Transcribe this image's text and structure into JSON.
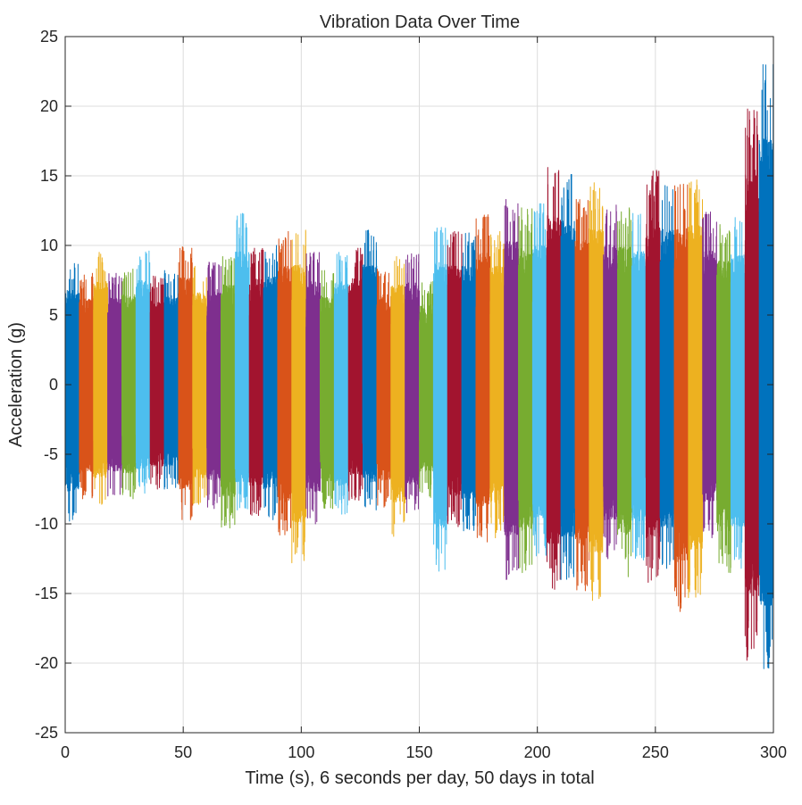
{
  "chart_data": {
    "type": "line",
    "title": "Vibration Data Over Time",
    "xlabel": "Time (s), 6 seconds per day, 50 days in total",
    "ylabel": "Acceleration (g)",
    "xlim": [
      0,
      300
    ],
    "ylim": [
      -25,
      25
    ],
    "xticks": [
      "0",
      "50",
      "100",
      "150",
      "200",
      "250",
      "300"
    ],
    "yticks": [
      "25",
      "20",
      "15",
      "10",
      "5",
      "0",
      "-5",
      "-10",
      "-15",
      "-20",
      "-25"
    ],
    "grid": true,
    "legend": "none",
    "segment_seconds": 6,
    "segment_count": 50,
    "colors": [
      "#0072BD",
      "#D95319",
      "#EDB120",
      "#7E2F8E",
      "#77AC30",
      "#4DBEEE",
      "#A2142F"
    ],
    "series": [
      {
        "start": 0,
        "end": 6,
        "ymax": 8.7,
        "ymin": -9.8
      },
      {
        "start": 6,
        "end": 12,
        "ymax": 8.0,
        "ymin": -8.2
      },
      {
        "start": 12,
        "end": 18,
        "ymax": 9.5,
        "ymin": -8.6
      },
      {
        "start": 18,
        "end": 24,
        "ymax": 8.0,
        "ymin": -8.0
      },
      {
        "start": 24,
        "end": 30,
        "ymax": 8.3,
        "ymin": -8.2
      },
      {
        "start": 30,
        "end": 36,
        "ymax": 9.6,
        "ymin": -7.8
      },
      {
        "start": 36,
        "end": 42,
        "ymax": 7.8,
        "ymin": -7.5
      },
      {
        "start": 42,
        "end": 48,
        "ymax": 8.2,
        "ymin": -7.5
      },
      {
        "start": 48,
        "end": 54,
        "ymax": 9.9,
        "ymin": -9.7
      },
      {
        "start": 54,
        "end": 60,
        "ymax": 8.5,
        "ymin": -8.6
      },
      {
        "start": 60,
        "end": 66,
        "ymax": 8.8,
        "ymin": -8.9
      },
      {
        "start": 66,
        "end": 72,
        "ymax": 9.2,
        "ymin": -10.3
      },
      {
        "start": 72,
        "end": 78,
        "ymax": 12.3,
        "ymin": -9.0
      },
      {
        "start": 78,
        "end": 84,
        "ymax": 9.8,
        "ymin": -9.4
      },
      {
        "start": 84,
        "end": 90,
        "ymax": 10.0,
        "ymin": -9.7
      },
      {
        "start": 90,
        "end": 96,
        "ymax": 11.0,
        "ymin": -10.8
      },
      {
        "start": 96,
        "end": 102,
        "ymax": 11.1,
        "ymin": -12.8
      },
      {
        "start": 102,
        "end": 108,
        "ymax": 9.5,
        "ymin": -10.0
      },
      {
        "start": 108,
        "end": 114,
        "ymax": 8.2,
        "ymin": -8.9
      },
      {
        "start": 114,
        "end": 120,
        "ymax": 9.5,
        "ymin": -9.3
      },
      {
        "start": 120,
        "end": 126,
        "ymax": 9.8,
        "ymin": -8.3
      },
      {
        "start": 126,
        "end": 132,
        "ymax": 11.1,
        "ymin": -9.0
      },
      {
        "start": 132,
        "end": 138,
        "ymax": 8.3,
        "ymin": -8.8
      },
      {
        "start": 138,
        "end": 144,
        "ymax": 9.2,
        "ymin": -10.9
      },
      {
        "start": 144,
        "end": 150,
        "ymax": 9.4,
        "ymin": -9.2
      },
      {
        "start": 150,
        "end": 156,
        "ymax": 7.4,
        "ymin": -8.1
      },
      {
        "start": 156,
        "end": 162,
        "ymax": 11.3,
        "ymin": -13.4
      },
      {
        "start": 162,
        "end": 168,
        "ymax": 11.0,
        "ymin": -10.2
      },
      {
        "start": 168,
        "end": 174,
        "ymax": 10.9,
        "ymin": -10.5
      },
      {
        "start": 174,
        "end": 180,
        "ymax": 12.2,
        "ymin": -11.3
      },
      {
        "start": 180,
        "end": 186,
        "ymax": 11.0,
        "ymin": -11.0
      },
      {
        "start": 186,
        "end": 192,
        "ymax": 13.3,
        "ymin": -14.0
      },
      {
        "start": 192,
        "end": 198,
        "ymax": 12.7,
        "ymin": -13.5
      },
      {
        "start": 198,
        "end": 204,
        "ymax": 13.0,
        "ymin": -12.3
      },
      {
        "start": 204,
        "end": 210,
        "ymax": 15.6,
        "ymin": -14.7
      },
      {
        "start": 210,
        "end": 216,
        "ymax": 15.1,
        "ymin": -14.0
      },
      {
        "start": 216,
        "end": 222,
        "ymax": 13.3,
        "ymin": -14.8
      },
      {
        "start": 222,
        "end": 228,
        "ymax": 14.5,
        "ymin": -15.5
      },
      {
        "start": 228,
        "end": 234,
        "ymax": 12.9,
        "ymin": -12.5
      },
      {
        "start": 234,
        "end": 240,
        "ymax": 12.7,
        "ymin": -13.8
      },
      {
        "start": 240,
        "end": 246,
        "ymax": 12.3,
        "ymin": -12.6
      },
      {
        "start": 246,
        "end": 252,
        "ymax": 15.4,
        "ymin": -14.2
      },
      {
        "start": 252,
        "end": 258,
        "ymax": 14.3,
        "ymin": -13.2
      },
      {
        "start": 258,
        "end": 264,
        "ymax": 14.4,
        "ymin": -16.3
      },
      {
        "start": 264,
        "end": 270,
        "ymax": 14.7,
        "ymin": -15.3
      },
      {
        "start": 270,
        "end": 276,
        "ymax": 12.4,
        "ymin": -11.0
      },
      {
        "start": 276,
        "end": 282,
        "ymax": 11.5,
        "ymin": -13.5
      },
      {
        "start": 282,
        "end": 288,
        "ymax": 12.0,
        "ymin": -13.2
      },
      {
        "start": 288,
        "end": 294,
        "ymax": 19.8,
        "ymin": -19.8
      },
      {
        "start": 294,
        "end": 300,
        "ymax": 23.0,
        "ymin": -20.4
      }
    ]
  }
}
